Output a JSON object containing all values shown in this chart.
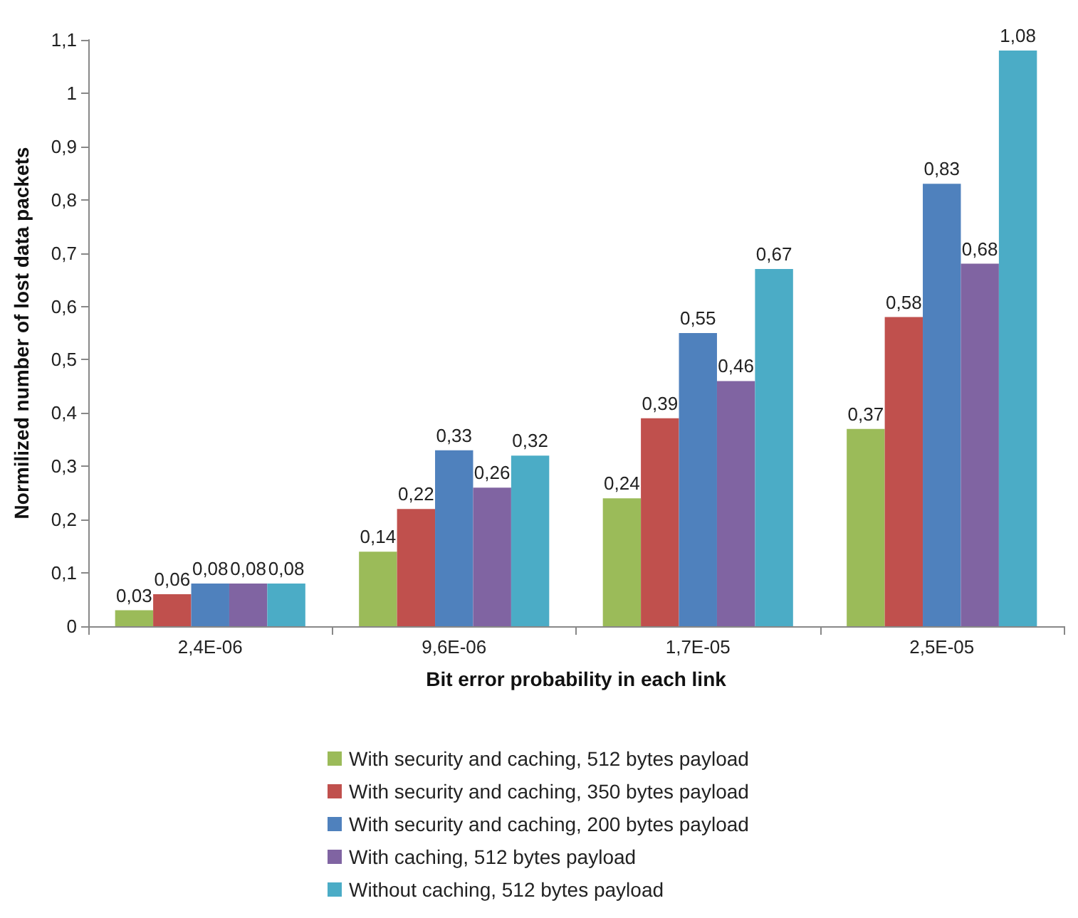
{
  "chart_data": {
    "type": "bar",
    "xlabel": "Bit error probability in each link",
    "ylabel": "Normilized number of lost data packets",
    "categories": [
      "2,4E-06",
      "9,6E-06",
      "1,7E-05",
      "2,5E-05"
    ],
    "series": [
      {
        "name": "With security and caching, 512 bytes payload",
        "color": "#9bbb59",
        "values": [
          0.03,
          0.14,
          0.24,
          0.37
        ],
        "value_labels": [
          "0,03",
          "0,14",
          "0,24",
          "0,37"
        ]
      },
      {
        "name": "With security and caching, 350 bytes payload",
        "color": "#c0504d",
        "values": [
          0.06,
          0.22,
          0.39,
          0.58
        ],
        "value_labels": [
          "0,06",
          "0,22",
          "0,39",
          "0,58"
        ]
      },
      {
        "name": "With security and caching, 200 bytes payload",
        "color": "#4f81bd",
        "values": [
          0.08,
          0.33,
          0.55,
          0.83
        ],
        "value_labels": [
          "0,08",
          "0,33",
          "0,55",
          "0,83"
        ]
      },
      {
        "name": "With caching, 512 bytes payload",
        "color": "#8064a2",
        "values": [
          0.08,
          0.26,
          0.46,
          0.68
        ],
        "value_labels": [
          "0,08",
          "0,26",
          "0,46",
          "0,68"
        ]
      },
      {
        "name": "Without caching, 512 bytes payload",
        "color": "#4bacc6",
        "values": [
          0.08,
          0.32,
          0.67,
          1.08
        ],
        "value_labels": [
          "0,08",
          "0,32",
          "0,67",
          "1,08"
        ]
      }
    ],
    "ylim": [
      0,
      1.1
    ],
    "yticks": [
      0,
      {
        "value": 0.1,
        "label": "0,1"
      },
      {
        "value": 0.2,
        "label": "0,2"
      },
      {
        "value": 0.3,
        "label": "0,3"
      },
      {
        "value": 0.4,
        "label": "0,4"
      },
      {
        "value": 0.5,
        "label": "0,5"
      },
      {
        "value": 0.6,
        "label": "0,6"
      },
      {
        "value": 0.7,
        "label": "0,7"
      },
      {
        "value": 0.8,
        "label": "0,8"
      },
      {
        "value": 0.9,
        "label": "0,9"
      },
      1,
      {
        "value": 1.1,
        "label": "1,1"
      }
    ],
    "grid": false,
    "legend": "bottom"
  }
}
